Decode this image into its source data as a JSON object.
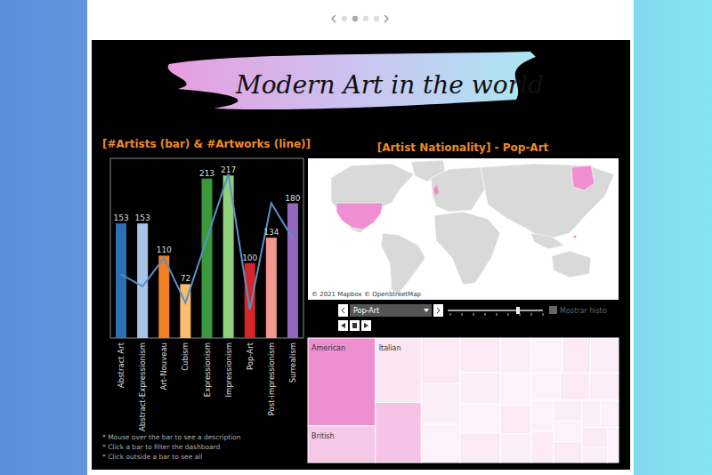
{
  "dashboard": {
    "title": "Modern Art in the world",
    "notes": [
      "* Mouse over the bar to see a description",
      "* Click a bar to filter the dashboard",
      "* Click outside a bar to see all"
    ],
    "filter": {
      "selected": "Pop-Art",
      "option": "Mostrar histo"
    }
  },
  "chart_data": [
    {
      "type": "bar",
      "title": "[#Artists (bar) & #Artworks (line)]",
      "categories": [
        "Abstract Art",
        "Abstract-Expressionism",
        "Art-Nouveau",
        "Cubism",
        "Expressionism",
        "Impressionism",
        "Pop-Art",
        "Post-impressionism",
        "Surrealism"
      ],
      "series": [
        {
          "type": "bar",
          "colors": [
            "#2e6eb5",
            "#a9c4e8",
            "#f07f21",
            "#fbbd6b",
            "#3a9a3a",
            "#8fd17a",
            "#d62728",
            "#f4978e",
            "#9467bd"
          ],
          "values": [
            153,
            153,
            110,
            72,
            213,
            217,
            100,
            134,
            180
          ]
        },
        {
          "type": "line",
          "color": "#5b8fc9",
          "values": [
            85,
            69,
            107,
            47,
            133,
            219,
            38,
            180,
            133
          ]
        }
      ],
      "ylim": [
        0,
        240
      ],
      "data_labels": true,
      "tick_labels": "x"
    },
    {
      "type": "map",
      "title": "[Artist Nationality] - Pop-Art",
      "color": "#ef8fd2",
      "annotations": [
        "© 2021 Mapbox © OpenStreetMap"
      ]
    },
    {
      "type": "treemap",
      "categories": [
        "American",
        "British",
        "Italian",
        null,
        null,
        null,
        null,
        null,
        null,
        null,
        null,
        null,
        null,
        null,
        null,
        null,
        null,
        null,
        null,
        null,
        null,
        null,
        null,
        null,
        null,
        null,
        null,
        null,
        null,
        null,
        null
      ],
      "values": [
        60,
        25,
        30,
        28,
        18,
        16,
        15,
        14,
        13,
        12,
        12,
        11,
        11,
        10,
        10,
        10,
        9,
        9,
        8,
        8,
        8,
        7,
        7,
        6,
        6,
        6,
        5,
        5,
        5,
        4,
        4
      ],
      "colors": [
        "#ee8fd0",
        "#f5c8e7",
        "#fbe6f3",
        "#f5c3e5",
        "#fbe9f5",
        "#fceef7",
        "#fdf2f9",
        "#fbe9f5",
        "#fceef7",
        "#fdf2f9",
        "#fbe9f5",
        "#fceef7",
        "#fdf2f9",
        "#fbe9f5",
        "#fceef7",
        "#fdf2f9",
        "#fbe9f5",
        "#fceef7",
        "#fdf2f9",
        "#fbe9f5",
        "#fceef7",
        "#fdf2f9",
        "#fbe9f5",
        "#fceef7",
        "#fdf2f9",
        "#fbe9f5",
        "#fceef7",
        "#fdf2f9",
        "#fbe9f5",
        "#fceef7",
        "#fdf2f9"
      ]
    }
  ]
}
